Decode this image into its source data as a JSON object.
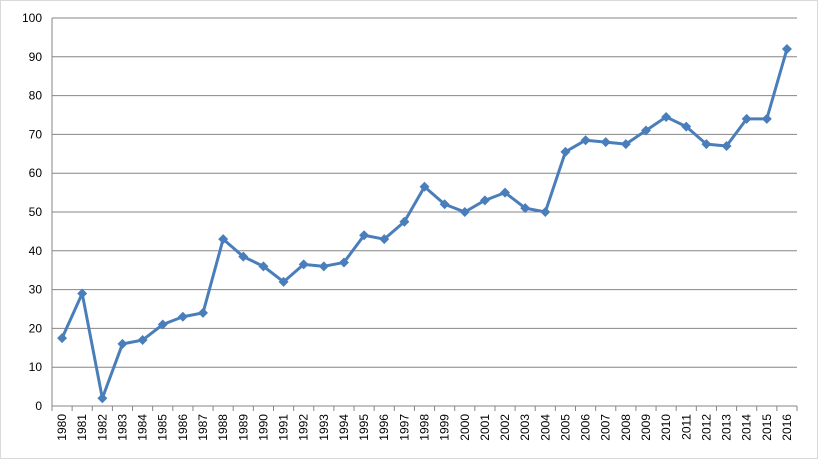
{
  "chart_data": {
    "type": "line",
    "categories": [
      "1980",
      "1981",
      "1982",
      "1983",
      "1984",
      "1985",
      "1986",
      "1987",
      "1988",
      "1989",
      "1990",
      "1991",
      "1992",
      "1993",
      "1994",
      "1995",
      "1996",
      "1997",
      "1998",
      "1999",
      "2000",
      "2001",
      "2002",
      "2003",
      "2004",
      "2005",
      "2006",
      "2007",
      "2008",
      "2009",
      "2010",
      "2011",
      "2012",
      "2013",
      "2014",
      "2015",
      "2016"
    ],
    "values": [
      17.5,
      29,
      2,
      16,
      17,
      21,
      23,
      24,
      43,
      38.5,
      36,
      32,
      36.5,
      36,
      37,
      44,
      43,
      47.5,
      56.5,
      52,
      50,
      53,
      55,
      51,
      50,
      65.5,
      68.5,
      68,
      67.5,
      71,
      74.5,
      72,
      67.5,
      67,
      74,
      74,
      92
    ],
    "color": "#4a7ebb",
    "ylim": [
      0,
      100
    ],
    "yticks": [
      0,
      10,
      20,
      30,
      40,
      50,
      60,
      70,
      80,
      90,
      100
    ],
    "grid": true
  }
}
